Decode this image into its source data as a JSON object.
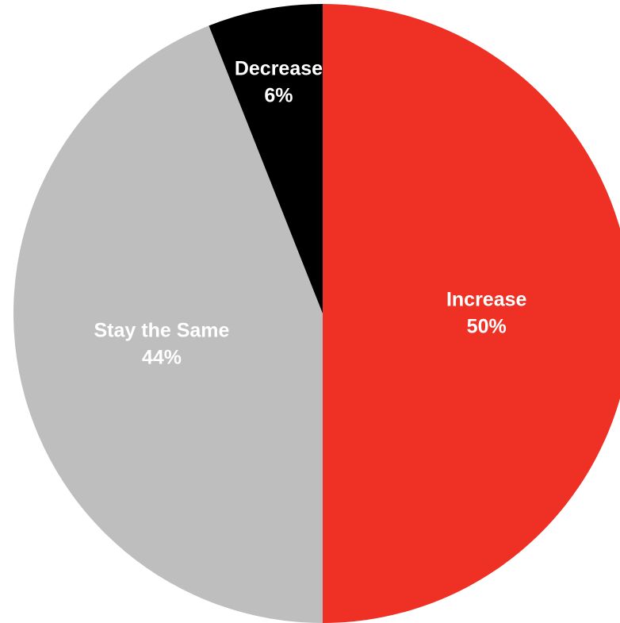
{
  "chart_data": {
    "type": "pie",
    "title": "",
    "start_angle_deg": 0,
    "direction": "clockwise",
    "slices": [
      {
        "label": "Increase",
        "value": 50,
        "value_label": "50%",
        "color": "#EE3124",
        "text_color": "#FFFFFF"
      },
      {
        "label": "Stay the Same",
        "value": 44,
        "value_label": "44%",
        "color": "#BEBEBE",
        "text_color": "#FFFFFF"
      },
      {
        "label": "Decrease",
        "value": 6,
        "value_label": "6%",
        "color": "#000000",
        "text_color": "#FFFFFF"
      }
    ]
  }
}
